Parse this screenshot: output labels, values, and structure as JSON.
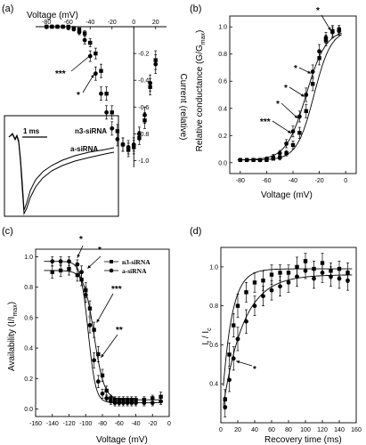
{
  "panels": {
    "a": {
      "label": "(a)",
      "xlabel": "Voltage (mV)",
      "ylabel": "Current (relative)",
      "xticks": [
        "-80",
        "-60",
        "-40",
        "-20",
        "0",
        "20"
      ],
      "yticks": [
        "-0.2",
        "-0.4",
        "-0.6",
        "-0.8",
        "-1.0"
      ],
      "stars": [
        "***",
        "*"
      ],
      "inset": {
        "scale": "1 ms",
        "trace1": "n3-siRNA",
        "trace2": "a-siRNA"
      }
    },
    "b": {
      "label": "(b)",
      "xlabel": "Voltage (mV)",
      "ylabel": "Relative conductance (G/G",
      "ylabel_sub": "max",
      "ylabel_end": ")",
      "xticks": [
        "-80",
        "-60",
        "-40",
        "-20",
        "0"
      ],
      "yticks": [
        "0.0",
        "0.2",
        "0.4",
        "0.6",
        "0.8",
        "1.0"
      ],
      "stars": [
        "***",
        "*",
        "*",
        "*",
        "*"
      ]
    },
    "c": {
      "label": "(c)",
      "xlabel": "Voltage (mV)",
      "ylabel": "Availability (I/I",
      "ylabel_sub": "max",
      "ylabel_end": ")",
      "xticks": [
        "-160",
        "-140",
        "-120",
        "-100",
        "-80",
        "-60",
        "-40",
        "-20",
        "0"
      ],
      "yticks": [
        "0.0",
        "0.2",
        "0.4",
        "0.6",
        "0.8",
        "1.0"
      ],
      "legend": [
        "n3-siRNA",
        "a-siRNA"
      ],
      "stars": [
        "*",
        "*",
        "***",
        "**"
      ]
    },
    "d": {
      "label": "(d)",
      "xlabel": "Recovery time (ms)",
      "ylabel": "I",
      "ylabel_sub1": "t",
      "ylabel_mid": " / I",
      "ylabel_sub2": "c",
      "xticks": [
        "0",
        "20",
        "40",
        "60",
        "80",
        "100",
        "120",
        "140",
        "160"
      ],
      "yticks": [
        "0.4",
        "0.6",
        "0.8",
        "1.0"
      ],
      "stars": [
        "*"
      ]
    }
  },
  "chart_data": [
    {
      "panel": "a",
      "type": "scatter",
      "title": "",
      "xlabel": "Voltage (mV)",
      "ylabel": "Current (relative)",
      "xlim": [
        -90,
        30
      ],
      "ylim": [
        -1.05,
        0.02
      ],
      "series": [
        {
          "name": "n3-siRNA",
          "marker": "square",
          "x": [
            -80,
            -75,
            -70,
            -65,
            -60,
            -55,
            -50,
            -45,
            -40,
            -35,
            -30,
            -25,
            -20,
            -15,
            -10,
            -5,
            0,
            5,
            10,
            15,
            20
          ],
          "y": [
            0,
            0,
            0,
            0,
            0,
            -0.01,
            -0.02,
            -0.05,
            -0.12,
            -0.2,
            -0.33,
            -0.5,
            -0.64,
            -0.78,
            -0.88,
            -0.92,
            -0.9,
            -0.83,
            -0.7,
            -0.45,
            -0.25
          ],
          "err": [
            0,
            0,
            0,
            0,
            0,
            0.01,
            0.01,
            0.02,
            0.03,
            0.04,
            0.05,
            0.05,
            0.05,
            0.05,
            0.05,
            0.05,
            0.05,
            0.05,
            0.06,
            0.06,
            0.07
          ]
        },
        {
          "name": "a-siRNA",
          "marker": "circle",
          "x": [
            -80,
            -75,
            -70,
            -65,
            -60,
            -55,
            -50,
            -45,
            -40,
            -35,
            -30,
            -25,
            -20,
            -15,
            -10,
            -5,
            0,
            5,
            10,
            15,
            20
          ],
          "y": [
            0,
            0,
            0,
            0,
            -0.01,
            -0.02,
            -0.04,
            -0.1,
            -0.22,
            -0.35,
            -0.5,
            -0.64,
            -0.76,
            -0.84,
            -0.88,
            -0.9,
            -0.88,
            -0.8,
            -0.66,
            -0.42,
            -0.28
          ],
          "err": [
            0,
            0,
            0,
            0,
            0.01,
            0.01,
            0.02,
            0.03,
            0.04,
            0.05,
            0.05,
            0.05,
            0.05,
            0.05,
            0.05,
            0.05,
            0.05,
            0.05,
            0.06,
            0.06,
            0.07
          ]
        }
      ]
    },
    {
      "panel": "b",
      "type": "scatter",
      "title": "",
      "xlabel": "Voltage (mV)",
      "ylabel": "Relative conductance (G/Gmax)",
      "xlim": [
        -88,
        8
      ],
      "ylim": [
        -0.08,
        1.08
      ],
      "series": [
        {
          "name": "n3-siRNA",
          "marker": "square",
          "x": [
            -80,
            -75,
            -70,
            -65,
            -60,
            -55,
            -50,
            -45,
            -40,
            -35,
            -30,
            -25,
            -20,
            -15,
            -10,
            -5
          ],
          "y": [
            0.02,
            0.02,
            0.02,
            0.02,
            0.02,
            0.03,
            0.04,
            0.07,
            0.13,
            0.22,
            0.38,
            0.58,
            0.77,
            0.9,
            0.97,
            0.98
          ],
          "err": [
            0.01,
            0.01,
            0.01,
            0.01,
            0.01,
            0.01,
            0.02,
            0.02,
            0.03,
            0.04,
            0.05,
            0.05,
            0.05,
            0.04,
            0.04,
            0.03
          ]
        },
        {
          "name": "a-siRNA",
          "marker": "circle",
          "x": [
            -80,
            -75,
            -70,
            -65,
            -60,
            -55,
            -50,
            -45,
            -40,
            -35,
            -30,
            -25,
            -20,
            -15,
            -10,
            -5
          ],
          "y": [
            0.02,
            0.02,
            0.02,
            0.02,
            0.03,
            0.04,
            0.07,
            0.14,
            0.23,
            0.34,
            0.5,
            0.67,
            0.82,
            0.92,
            0.96,
            0.97
          ],
          "err": [
            0.01,
            0.01,
            0.01,
            0.01,
            0.01,
            0.02,
            0.02,
            0.03,
            0.04,
            0.04,
            0.05,
            0.05,
            0.05,
            0.04,
            0.04,
            0.03
          ]
        }
      ]
    },
    {
      "panel": "c",
      "type": "scatter",
      "title": "",
      "xlabel": "Voltage (mV)",
      "ylabel": "Availability (I/Imax)",
      "xlim": [
        -160,
        0
      ],
      "ylim": [
        -0.05,
        1.05
      ],
      "series": [
        {
          "name": "n3-siRNA",
          "marker": "square",
          "x": [
            -140,
            -130,
            -120,
            -110,
            -105,
            -100,
            -95,
            -90,
            -85,
            -80,
            -75,
            -70,
            -65,
            -60,
            -55,
            -50,
            -45,
            -40,
            -30,
            -20,
            -10
          ],
          "y": [
            0.9,
            0.91,
            0.92,
            0.88,
            0.85,
            0.78,
            0.66,
            0.52,
            0.36,
            0.22,
            0.12,
            0.07,
            0.06,
            0.06,
            0.06,
            0.06,
            0.06,
            0.06,
            0.06,
            0.07,
            0.08
          ],
          "err": [
            0.04,
            0.04,
            0.04,
            0.04,
            0.04,
            0.05,
            0.05,
            0.05,
            0.05,
            0.04,
            0.03,
            0.02,
            0.02,
            0.02,
            0.02,
            0.02,
            0.02,
            0.02,
            0.02,
            0.02,
            0.03
          ]
        },
        {
          "name": "a-siRNA",
          "marker": "circle",
          "x": [
            -140,
            -130,
            -120,
            -110,
            -105,
            -100,
            -95,
            -90,
            -85,
            -80,
            -75,
            -70,
            -65,
            -60,
            -55,
            -50,
            -45,
            -40,
            -30,
            -20,
            -10
          ],
          "y": [
            0.97,
            0.97,
            0.97,
            0.95,
            0.9,
            0.75,
            0.55,
            0.32,
            0.18,
            0.1,
            0.07,
            0.05,
            0.04,
            0.04,
            0.04,
            0.04,
            0.04,
            0.04,
            0.04,
            0.04,
            0.05
          ],
          "err": [
            0.03,
            0.03,
            0.03,
            0.03,
            0.04,
            0.05,
            0.05,
            0.05,
            0.04,
            0.03,
            0.02,
            0.02,
            0.02,
            0.02,
            0.02,
            0.02,
            0.02,
            0.02,
            0.02,
            0.02,
            0.02
          ]
        }
      ]
    },
    {
      "panel": "d",
      "type": "scatter",
      "title": "",
      "xlabel": "Recovery time (ms)",
      "ylabel": "It / Ic",
      "xlim": [
        0,
        160
      ],
      "ylim": [
        0.2,
        1.1
      ],
      "series": [
        {
          "name": "n3-siRNA",
          "marker": "square",
          "x": [
            5,
            10,
            15,
            20,
            30,
            40,
            50,
            60,
            70,
            80,
            90,
            100,
            110,
            120,
            130,
            140,
            150
          ],
          "y": [
            0.32,
            0.55,
            0.7,
            0.8,
            0.87,
            0.92,
            0.93,
            0.96,
            0.97,
            0.97,
            1.0,
            1.03,
            0.99,
            1.02,
            0.98,
            0.99,
            0.97
          ],
          "err": [
            0.05,
            0.06,
            0.06,
            0.06,
            0.05,
            0.05,
            0.05,
            0.05,
            0.04,
            0.04,
            0.05,
            0.04,
            0.04,
            0.05,
            0.04,
            0.04,
            0.05
          ]
        },
        {
          "name": "a-siRNA",
          "marker": "circle",
          "x": [
            5,
            10,
            15,
            20,
            30,
            40,
            50,
            60,
            70,
            80,
            90,
            100,
            110,
            120,
            130,
            140,
            150
          ],
          "y": [
            0.28,
            0.42,
            0.53,
            0.63,
            0.72,
            0.8,
            0.85,
            0.88,
            0.9,
            0.92,
            0.95,
            0.98,
            0.94,
            0.97,
            0.95,
            0.94,
            0.93
          ],
          "err": [
            0.05,
            0.06,
            0.06,
            0.06,
            0.06,
            0.05,
            0.05,
            0.05,
            0.05,
            0.05,
            0.05,
            0.04,
            0.05,
            0.05,
            0.05,
            0.05,
            0.05
          ]
        }
      ]
    }
  ]
}
